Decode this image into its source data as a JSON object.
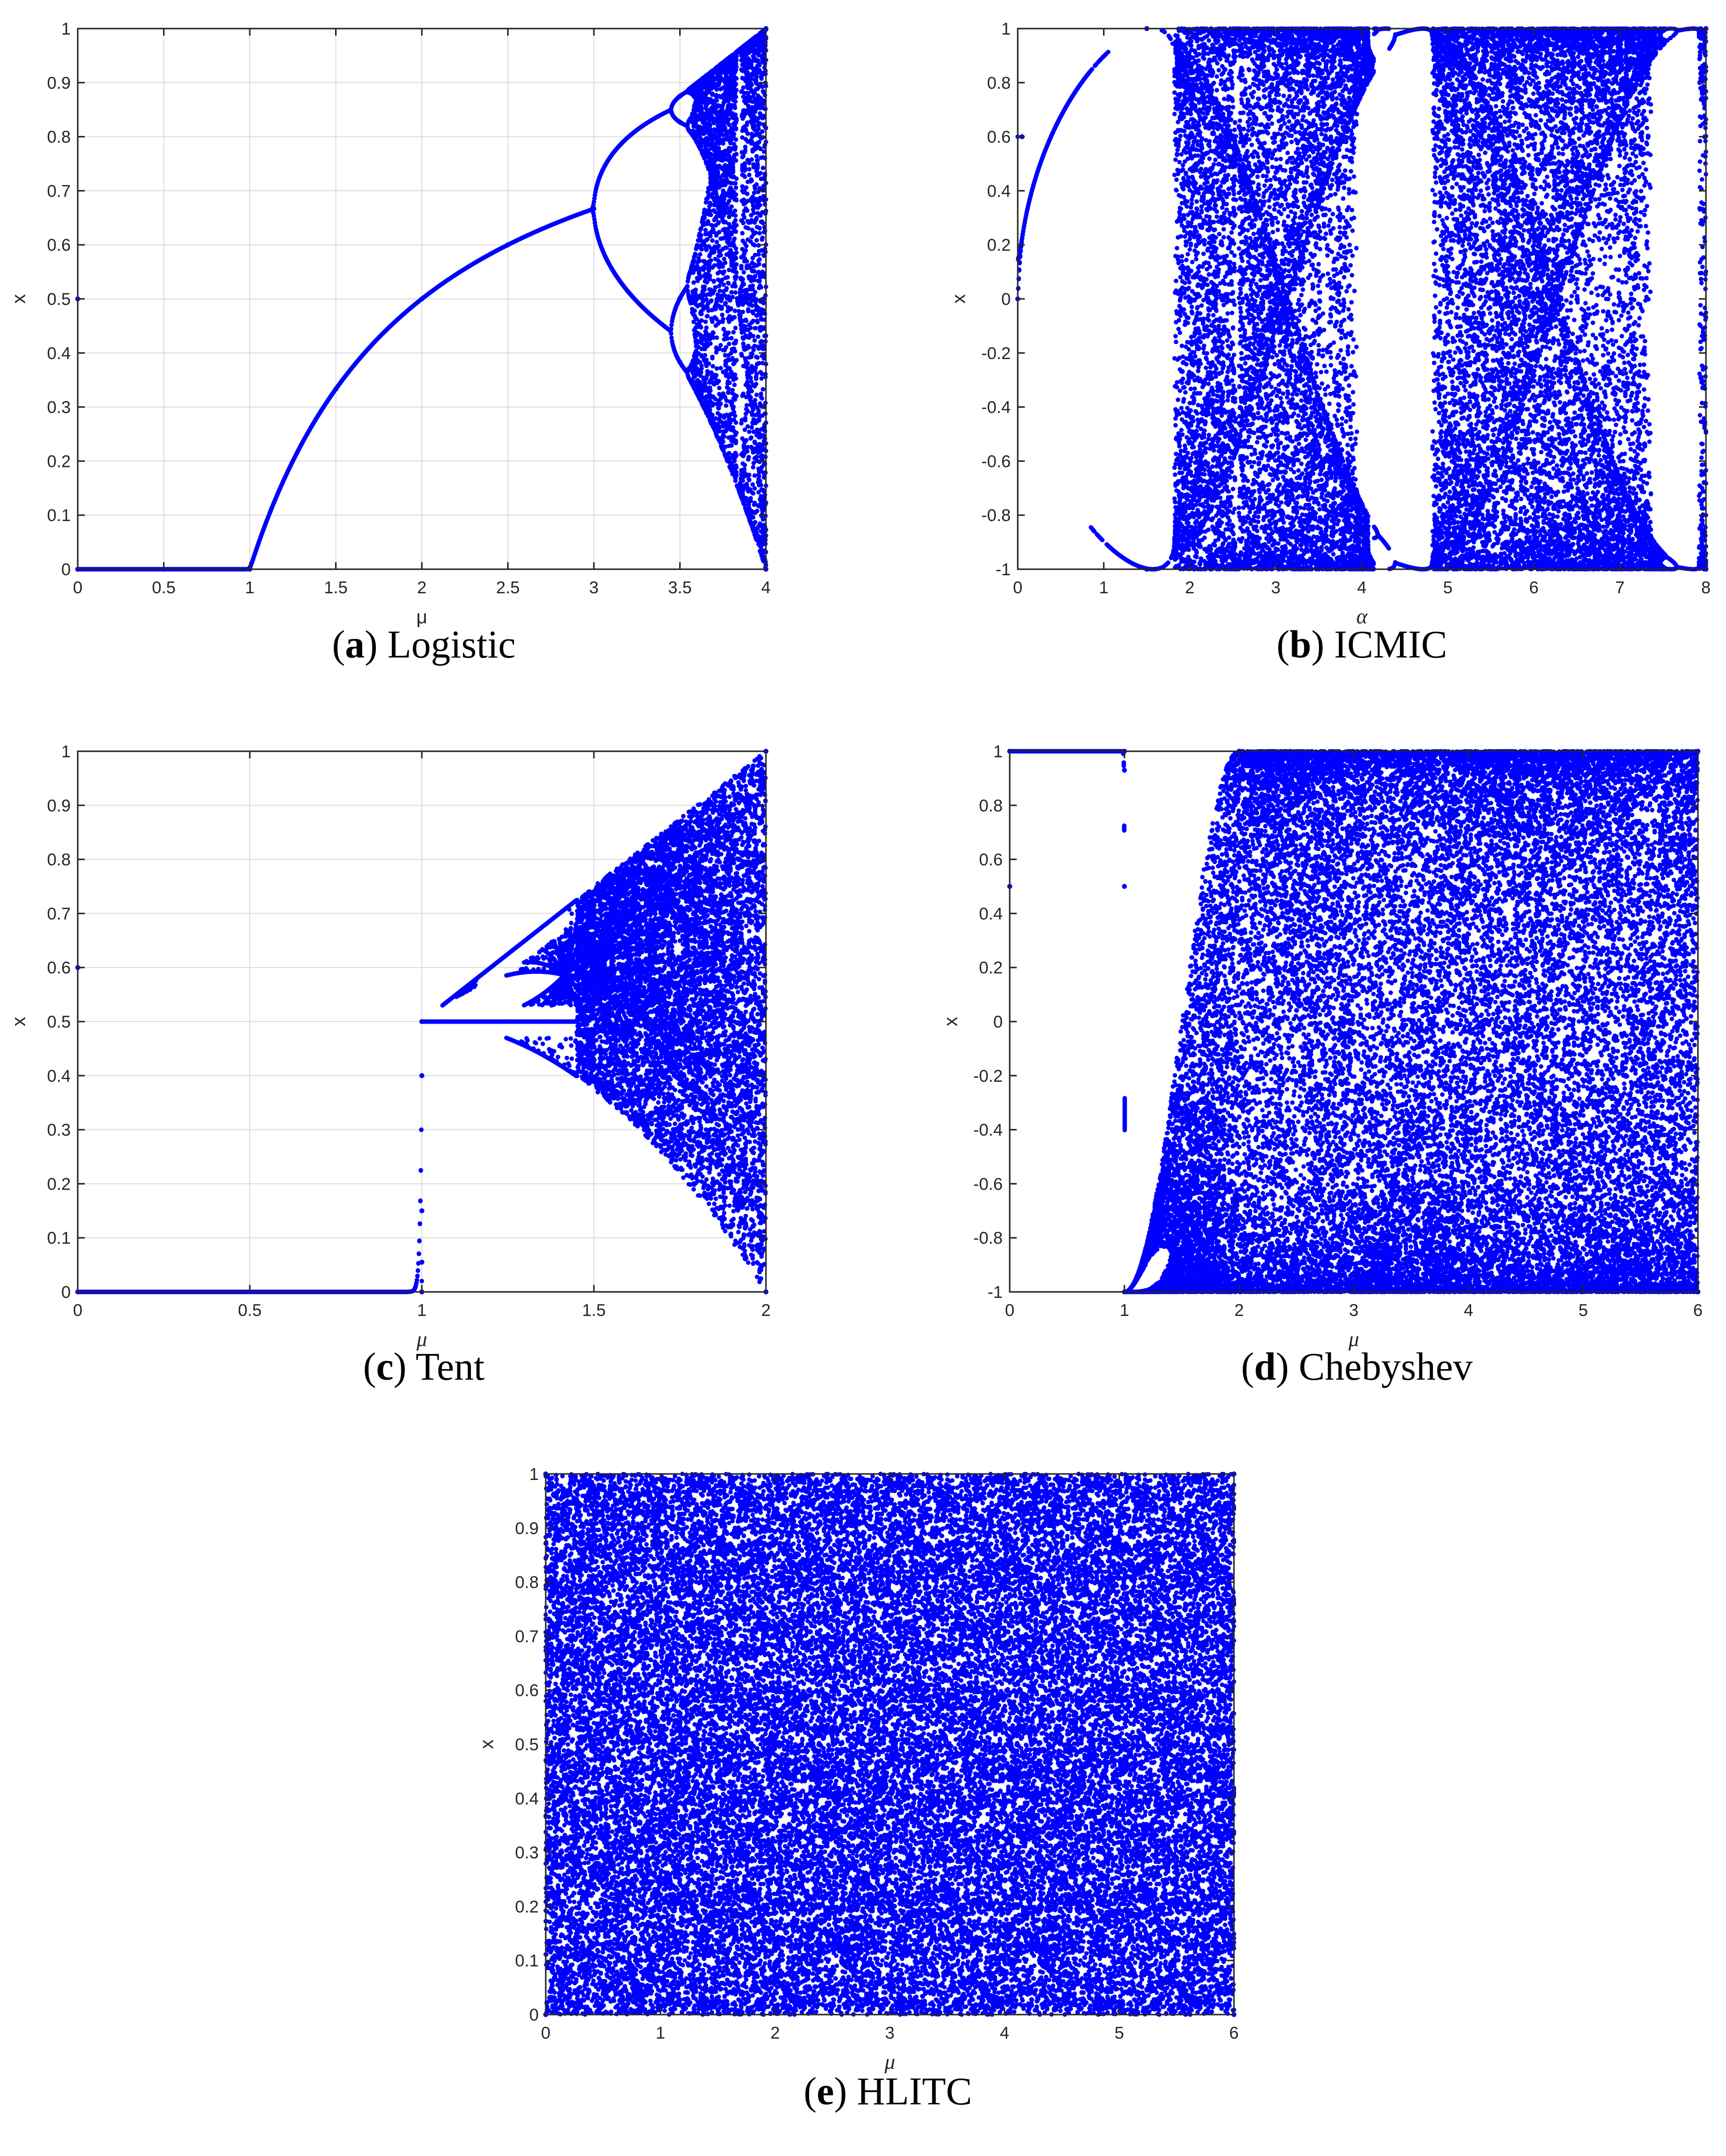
{
  "figure": {
    "series_color": "#0000ff",
    "axis_color": "#262626",
    "grid_color": "#dcdcdc"
  },
  "chart_data": [
    {
      "id": "a",
      "type": "scatter",
      "map": "logistic",
      "caption_letter": "a",
      "caption_text": "Logistic",
      "xlabel": "μ",
      "ylabel": "x",
      "xlim": [
        0,
        4
      ],
      "ylim": [
        0,
        1
      ],
      "xticks": [
        0,
        0.5,
        1,
        1.5,
        2,
        2.5,
        3,
        3.5,
        4
      ],
      "xtick_labels": [
        "0",
        "0.5",
        "1",
        "1.5",
        "2",
        "2.5",
        "3",
        "3.5",
        "4"
      ],
      "yticks": [
        0,
        0.1,
        0.2,
        0.3,
        0.4,
        0.5,
        0.6,
        0.7,
        0.8,
        0.9,
        1
      ],
      "ytick_labels": [
        "0",
        "0.1",
        "0.2",
        "0.3",
        "0.4",
        "0.5",
        "0.6",
        "0.7",
        "0.8",
        "0.9",
        "1"
      ],
      "grid": true,
      "points": [
        {
          "x": 0,
          "y": 0
        },
        {
          "x": 0.5,
          "y": 0
        },
        {
          "x": 1,
          "y": 0
        },
        {
          "x": 1.5,
          "y": 0.333
        },
        {
          "x": 2,
          "y": 0.5
        },
        {
          "x": 2.5,
          "y": 0.6
        },
        {
          "x": 3,
          "y": 0.667
        },
        {
          "x": 3.5,
          "y": 0.875
        },
        {
          "x": 3.5,
          "y": 0.383
        },
        {
          "x": 3.5,
          "y": 0.827
        },
        {
          "x": 3.5,
          "y": 0.501
        },
        {
          "x": 4,
          "y": 1
        },
        {
          "x": 4,
          "y": 0
        },
        {
          "x": 0,
          "y": 0.5
        }
      ]
    },
    {
      "id": "b",
      "type": "scatter",
      "map": "icmic",
      "caption_letter": "b",
      "caption_text": "ICMIC",
      "xlabel": "α",
      "ylabel": "x",
      "xlim": [
        0,
        8
      ],
      "ylim": [
        -1,
        1
      ],
      "xticks": [
        0,
        1,
        2,
        3,
        4,
        5,
        6,
        7,
        8
      ],
      "xtick_labels": [
        "0",
        "1",
        "2",
        "3",
        "4",
        "5",
        "6",
        "7",
        "8"
      ],
      "yticks": [
        -1,
        -0.8,
        -0.6,
        -0.4,
        -0.2,
        0,
        0.2,
        0.4,
        0.6,
        0.8,
        1
      ],
      "ytick_labels": [
        "-1",
        "-0.8",
        "-0.6",
        "-0.4",
        "-0.2",
        "0",
        "0.2",
        "0.4",
        "0.6",
        "0.8",
        "1"
      ],
      "grid": false,
      "points": [
        {
          "x": 0,
          "y": 0
        },
        {
          "x": 0.05,
          "y": 0.6
        },
        {
          "x": 1.5,
          "y": 1
        },
        {
          "x": 1.5,
          "y": -1
        },
        {
          "x": 3,
          "y": 0
        },
        {
          "x": 6,
          "y": 0
        },
        {
          "x": 8,
          "y": 1
        },
        {
          "x": 8,
          "y": -1
        }
      ]
    },
    {
      "id": "c",
      "type": "scatter",
      "map": "tent",
      "caption_letter": "c",
      "caption_text": "Tent",
      "xlabel": "μ",
      "ylabel": "x",
      "xlim": [
        0,
        2
      ],
      "ylim": [
        0,
        1
      ],
      "xticks": [
        0,
        0.5,
        1,
        1.5,
        2
      ],
      "xtick_labels": [
        "0",
        "0.5",
        "1",
        "1.5",
        "2"
      ],
      "yticks": [
        0,
        0.1,
        0.2,
        0.3,
        0.4,
        0.5,
        0.6,
        0.7,
        0.8,
        0.9,
        1
      ],
      "ytick_labels": [
        "0",
        "0.1",
        "0.2",
        "0.3",
        "0.4",
        "0.5",
        "0.6",
        "0.7",
        "0.8",
        "0.9",
        "1"
      ],
      "grid": true,
      "points": [
        {
          "x": 0,
          "y": 0
        },
        {
          "x": 1,
          "y": 0
        },
        {
          "x": 0,
          "y": 0.6
        },
        {
          "x": 1,
          "y": 0.4
        },
        {
          "x": 1,
          "y": 0.15
        },
        {
          "x": 1,
          "y": 0.055
        },
        {
          "x": 1,
          "y": 0.5
        },
        {
          "x": 2,
          "y": 1
        },
        {
          "x": 2,
          "y": 0
        }
      ]
    },
    {
      "id": "d",
      "type": "scatter",
      "map": "chebyshev",
      "caption_letter": "d",
      "caption_text": "Chebyshev",
      "xlabel": "μ",
      "ylabel": "x",
      "xlim": [
        0,
        6
      ],
      "ylim": [
        -1,
        1
      ],
      "xticks": [
        0,
        1,
        2,
        3,
        4,
        5,
        6
      ],
      "xtick_labels": [
        "0",
        "1",
        "2",
        "3",
        "4",
        "5",
        "6"
      ],
      "yticks": [
        -1,
        -0.8,
        -0.6,
        -0.4,
        -0.2,
        0,
        0.2,
        0.4,
        0.6,
        0.8,
        1
      ],
      "ytick_labels": [
        "-1",
        "-0.8",
        "-0.6",
        "-0.4",
        "-0.2",
        "0",
        "0.2",
        "0.4",
        "0.6",
        "0.8",
        "1"
      ],
      "grid": false,
      "points": [
        {
          "x": 0,
          "y": 1
        },
        {
          "x": 1,
          "y": 1
        },
        {
          "x": 0,
          "y": 0.5
        },
        {
          "x": 1,
          "y": 0.93
        },
        {
          "x": 1,
          "y": 0.5
        },
        {
          "x": 1,
          "y": -1
        },
        {
          "x": 2,
          "y": 1
        },
        {
          "x": 6,
          "y": 1
        },
        {
          "x": 6,
          "y": -1
        }
      ]
    },
    {
      "id": "e",
      "type": "scatter",
      "map": "hlitc",
      "caption_letter": "e",
      "caption_text": "HLITC",
      "xlabel": "μ",
      "ylabel": "x",
      "xlim": [
        0,
        6
      ],
      "ylim": [
        0,
        1
      ],
      "xticks": [
        0,
        1,
        2,
        3,
        4,
        5,
        6
      ],
      "xtick_labels": [
        "0",
        "1",
        "2",
        "3",
        "4",
        "5",
        "6"
      ],
      "yticks": [
        0,
        0.1,
        0.2,
        0.3,
        0.4,
        0.5,
        0.6,
        0.7,
        0.8,
        0.9,
        1
      ],
      "ytick_labels": [
        "0",
        "0.1",
        "0.2",
        "0.3",
        "0.4",
        "0.5",
        "0.6",
        "0.7",
        "0.8",
        "0.9",
        "1"
      ],
      "grid": false,
      "points": [
        {
          "x": 0,
          "y": 0
        },
        {
          "x": 0,
          "y": 1
        },
        {
          "x": 6,
          "y": 0
        },
        {
          "x": 6,
          "y": 1
        }
      ]
    }
  ]
}
